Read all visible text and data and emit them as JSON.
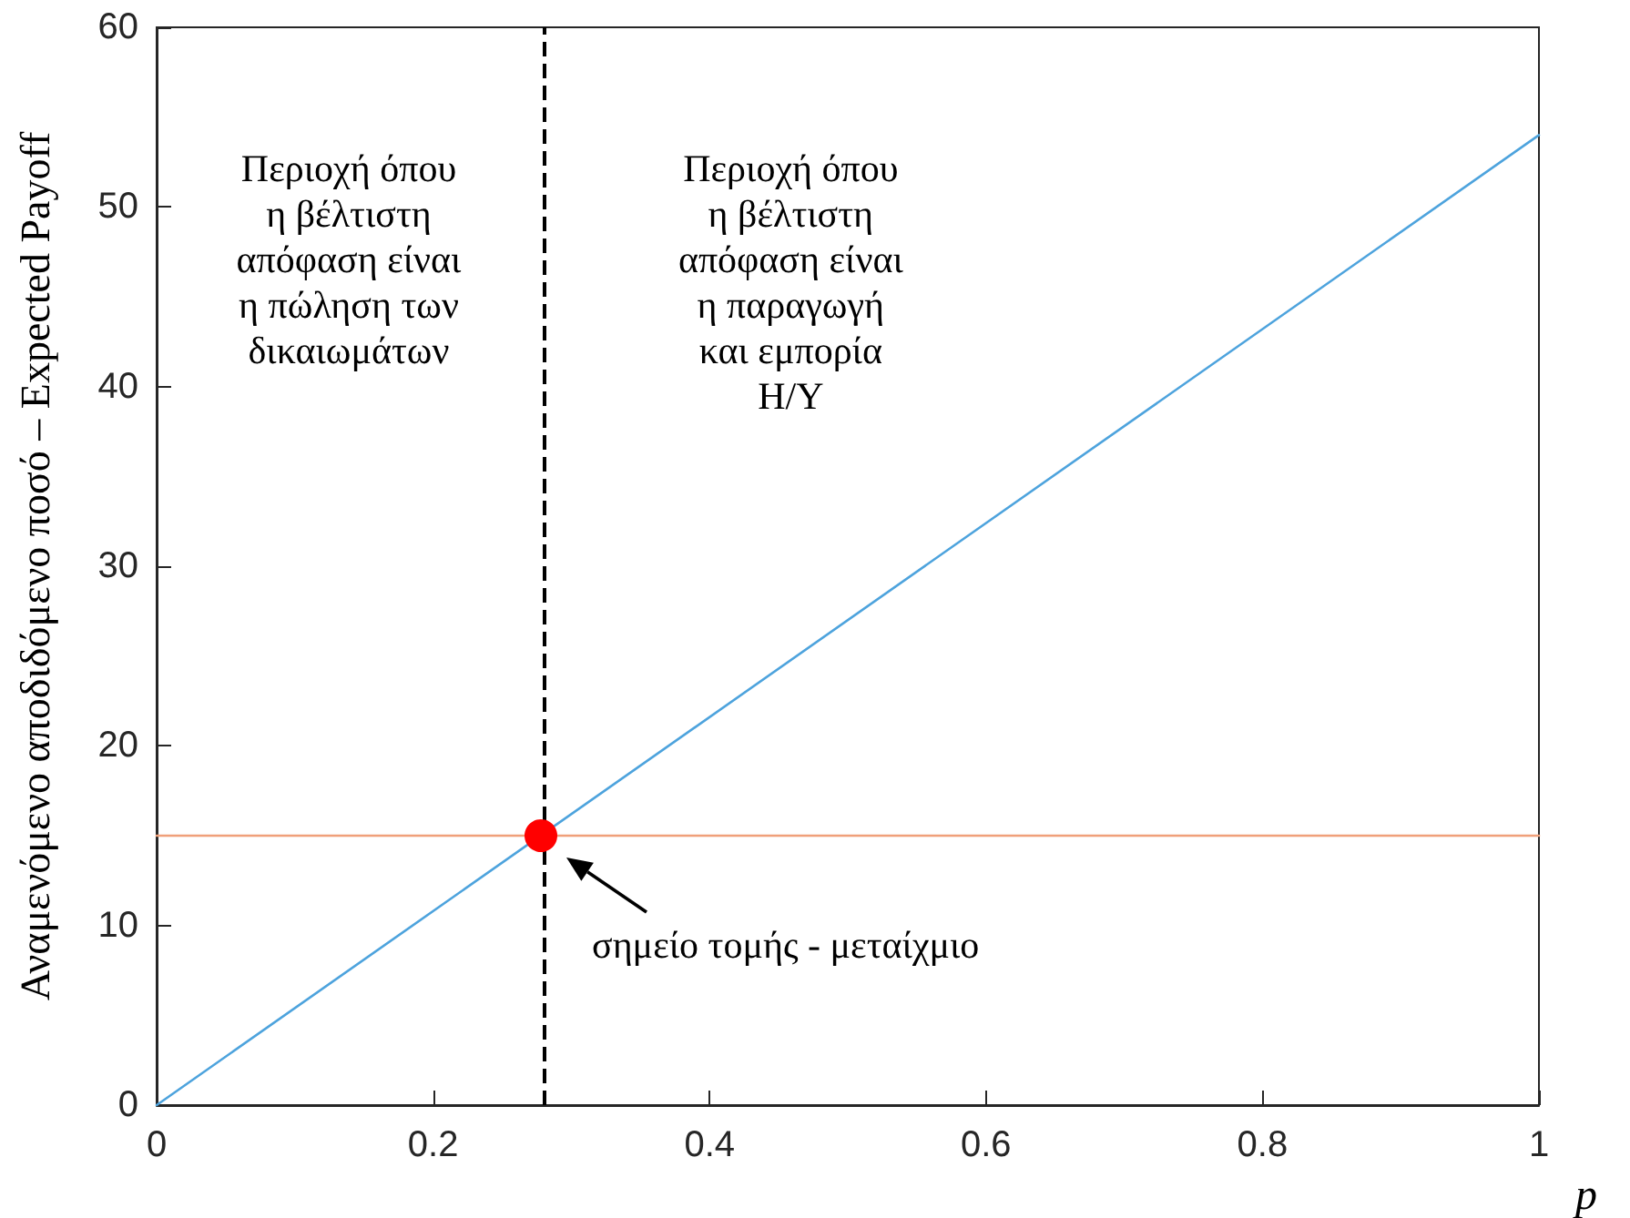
{
  "chart_data": {
    "type": "line",
    "xlabel": "p",
    "ylabel": "Αναμενόμενο αποδιδόμενο ποσό – Expected Payoff",
    "xlim": [
      0,
      1
    ],
    "xticks": [
      0,
      0.2,
      0.4,
      0.6,
      0.8,
      1
    ],
    "ylim": [
      0,
      60
    ],
    "yticks": [
      0,
      10,
      20,
      30,
      40,
      50,
      60
    ],
    "grid": false,
    "series": [
      {
        "color": "#4da3dd",
        "x": [
          0,
          1
        ],
        "values": [
          0,
          54
        ]
      },
      {
        "color": "#f0a07a",
        "x": [
          0,
          1
        ],
        "values": [
          15,
          15
        ]
      },
      {
        "type": "scatter",
        "color": "#ff0000",
        "marker": "circle",
        "x": [
          0.278
        ],
        "values": [
          15
        ]
      }
    ],
    "ref_lines": [
      {
        "axis": "x",
        "value": 0.278,
        "color": "#000000",
        "line_style": "dashed"
      }
    ],
    "annotations": [
      "Περιοχή όπου\nη βέλτιστη\nαπόφαση είναι\nη πώληση των\nδικαιωμάτων",
      "Περιοχή όπου\nη βέλτιστη\nαπόφαση είναι\nη παραγωγή\nκαι εμπορία\nΗ/Υ",
      {
        "text": "σημείο τομής - μεταίχμιο",
        "x": 0.278,
        "y": 15
      }
    ]
  }
}
